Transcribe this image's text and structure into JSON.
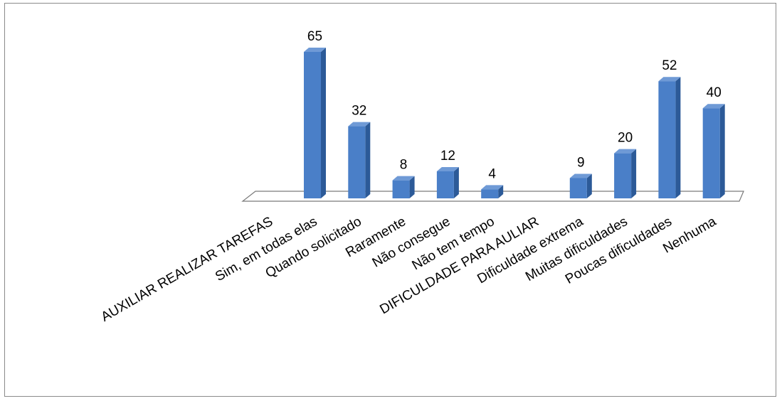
{
  "chart_data": {
    "type": "bar",
    "style": "3d-column",
    "categories": [
      "AUXILIAR REALIZAR TAREFAS",
      "Sim, em todas elas",
      "Quando solicitado",
      "Raramente",
      "Não consegue",
      "Não tem tempo",
      "DIFICULDADE PARA AULIAR",
      "Dificuldade extrema",
      "Muitas dificuldades",
      "Poucas dificuldades",
      "Nenhuma"
    ],
    "values": [
      null,
      65,
      32,
      8,
      12,
      4,
      null,
      9,
      20,
      52,
      40
    ],
    "data_labels": [
      "",
      "65",
      "32",
      "8",
      "12",
      "4",
      "",
      "9",
      "20",
      "52",
      "40"
    ],
    "title": "",
    "xlabel": "",
    "ylabel": "",
    "ylim": [
      0,
      65
    ],
    "grid": false,
    "legend": "none",
    "colors": {
      "bar_front": "#4a7fc8",
      "bar_side": "#2c5a98",
      "bar_top": "#6f9ad6",
      "floor_stroke": "#7a7a7a"
    }
  }
}
